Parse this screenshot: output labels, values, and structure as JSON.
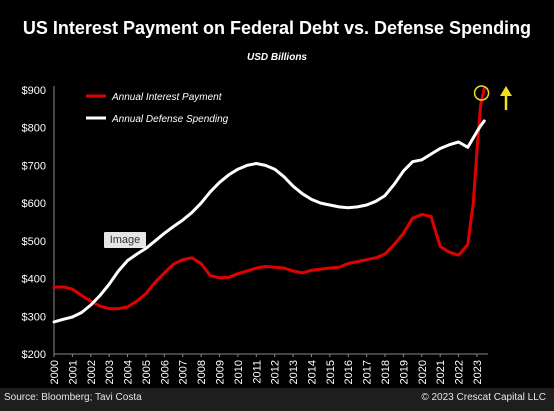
{
  "chart_data": {
    "type": "line",
    "title": "US Interest Payment on Federal Debt vs. Defense Spending",
    "subtitle": "USD Billions",
    "xlabel": "",
    "ylabel": "",
    "ylim": [
      200,
      900
    ],
    "xlim": [
      2000,
      2023.6
    ],
    "yticks": [
      200,
      300,
      400,
      500,
      600,
      700,
      800,
      900
    ],
    "ytick_labels": [
      "$200",
      "$300",
      "$400",
      "$500",
      "$600",
      "$700",
      "$800",
      "$900"
    ],
    "xtick_labels": [
      "2000",
      "2001",
      "2002",
      "2003",
      "2004",
      "2005",
      "2006",
      "2007",
      "2008",
      "2009",
      "2010",
      "2011",
      "2012",
      "2013",
      "2014",
      "2015",
      "2016",
      "2017",
      "2018",
      "2019",
      "2020",
      "2021",
      "2022",
      "2023"
    ],
    "legend_position": "top-left",
    "grid": false,
    "series": [
      {
        "name": "Annual Interest Payment",
        "color": "#e00000",
        "x": [
          2000,
          2000.5,
          2001,
          2001.5,
          2002,
          2002.5,
          2003,
          2003.5,
          2004,
          2004.5,
          2005,
          2005.5,
          2006,
          2006.5,
          2007,
          2007.5,
          2008,
          2008.5,
          2009,
          2009.5,
          2010,
          2010.5,
          2011,
          2011.5,
          2012,
          2012.5,
          2013,
          2013.5,
          2014,
          2014.5,
          2015,
          2015.5,
          2016,
          2016.5,
          2017,
          2017.5,
          2018,
          2018.5,
          2019,
          2019.5,
          2020,
          2020.5,
          2021,
          2021.5,
          2022,
          2022.5,
          2022.8,
          2023,
          2023.2,
          2023.4
        ],
        "values": [
          377,
          378,
          372,
          355,
          340,
          327,
          320,
          320,
          325,
          340,
          360,
          390,
          415,
          438,
          450,
          455,
          440,
          408,
          402,
          403,
          413,
          420,
          428,
          432,
          430,
          428,
          420,
          415,
          422,
          425,
          428,
          430,
          440,
          445,
          450,
          455,
          465,
          490,
          520,
          560,
          570,
          565,
          485,
          470,
          462,
          490,
          600,
          740,
          860,
          905
        ]
      },
      {
        "name": "Annual Defense Spending",
        "color": "#ffffff",
        "x": [
          2000,
          2000.5,
          2001,
          2001.5,
          2002,
          2002.5,
          2003,
          2003.5,
          2004,
          2004.5,
          2005,
          2005.5,
          2006,
          2006.5,
          2007,
          2007.5,
          2008,
          2008.5,
          2009,
          2009.5,
          2010,
          2010.5,
          2011,
          2011.5,
          2012,
          2012.5,
          2013,
          2013.5,
          2014,
          2014.5,
          2015,
          2015.5,
          2016,
          2016.5,
          2017,
          2017.5,
          2018,
          2018.5,
          2019,
          2019.5,
          2020,
          2020.5,
          2021,
          2021.5,
          2022,
          2022.5,
          2023,
          2023.2,
          2023.4
        ],
        "values": [
          285,
          292,
          298,
          310,
          330,
          355,
          385,
          420,
          448,
          465,
          480,
          500,
          520,
          538,
          555,
          575,
          600,
          630,
          655,
          675,
          690,
          700,
          705,
          700,
          690,
          670,
          645,
          625,
          610,
          600,
          595,
          590,
          588,
          590,
          595,
          605,
          620,
          650,
          685,
          710,
          715,
          730,
          745,
          755,
          762,
          748,
          790,
          805,
          818
        ]
      }
    ],
    "annotations": [
      {
        "type": "circle",
        "x": 2023.25,
        "y": 900,
        "color": "#f0e020"
      },
      {
        "type": "arrow-up",
        "color": "#f0e020"
      }
    ]
  },
  "badge": {
    "label": "Image"
  },
  "footer": {
    "source": "Source: Bloomberg; Tavi Costa",
    "copyright": "© 2023 Crescat Capital LLC"
  }
}
